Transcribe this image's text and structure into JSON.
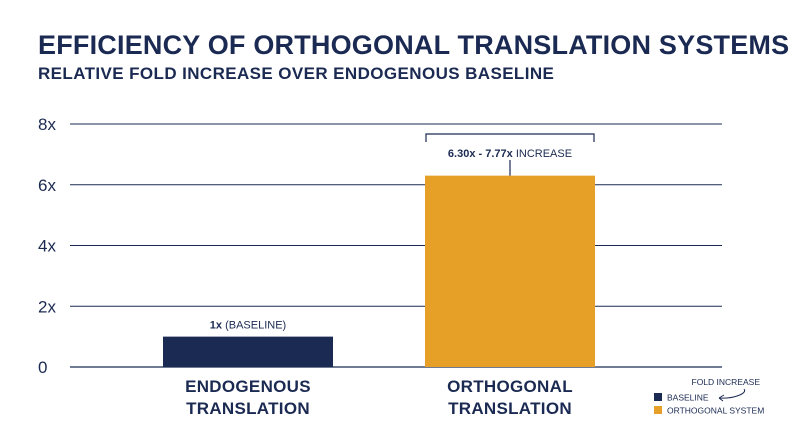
{
  "chart_data": {
    "type": "bar",
    "title": "EFFICIENCY OF ORTHOGONAL TRANSLATION SYSTEMS",
    "subtitle": "RELATIVE FOLD INCREASE OVER ENDOGENOUS BASELINE",
    "categories": [
      {
        "line1": "ENDOGENOUS",
        "line2": "TRANSLATION"
      },
      {
        "line1": "ORTHOGONAL",
        "line2": "TRANSLATION"
      }
    ],
    "series": [
      {
        "name": "BASELINE",
        "values": [
          1,
          null
        ],
        "color": "#1b2a52"
      },
      {
        "name": "ORTHOGONAL SYSTEM",
        "values": [
          null,
          6.3
        ],
        "color": "#e6a027"
      }
    ],
    "ylim": [
      0,
      8
    ],
    "yticks": [
      {
        "value": 0,
        "label": "0"
      },
      {
        "value": 2,
        "label": "2x"
      },
      {
        "value": 4,
        "label": "4x"
      },
      {
        "value": 6,
        "label": "6x"
      },
      {
        "value": 8,
        "label": "8x"
      }
    ],
    "grid": true,
    "annotations": {
      "baseline": {
        "bold": "1x",
        "rest": " (BASELINE)"
      },
      "orthogonal": {
        "bold": "6.30x - 7.77x",
        "rest": " INCREASE",
        "range": [
          6.3,
          7.77
        ]
      }
    },
    "legend": {
      "position": "bottom-right",
      "note": "FOLD INCREASE"
    }
  }
}
